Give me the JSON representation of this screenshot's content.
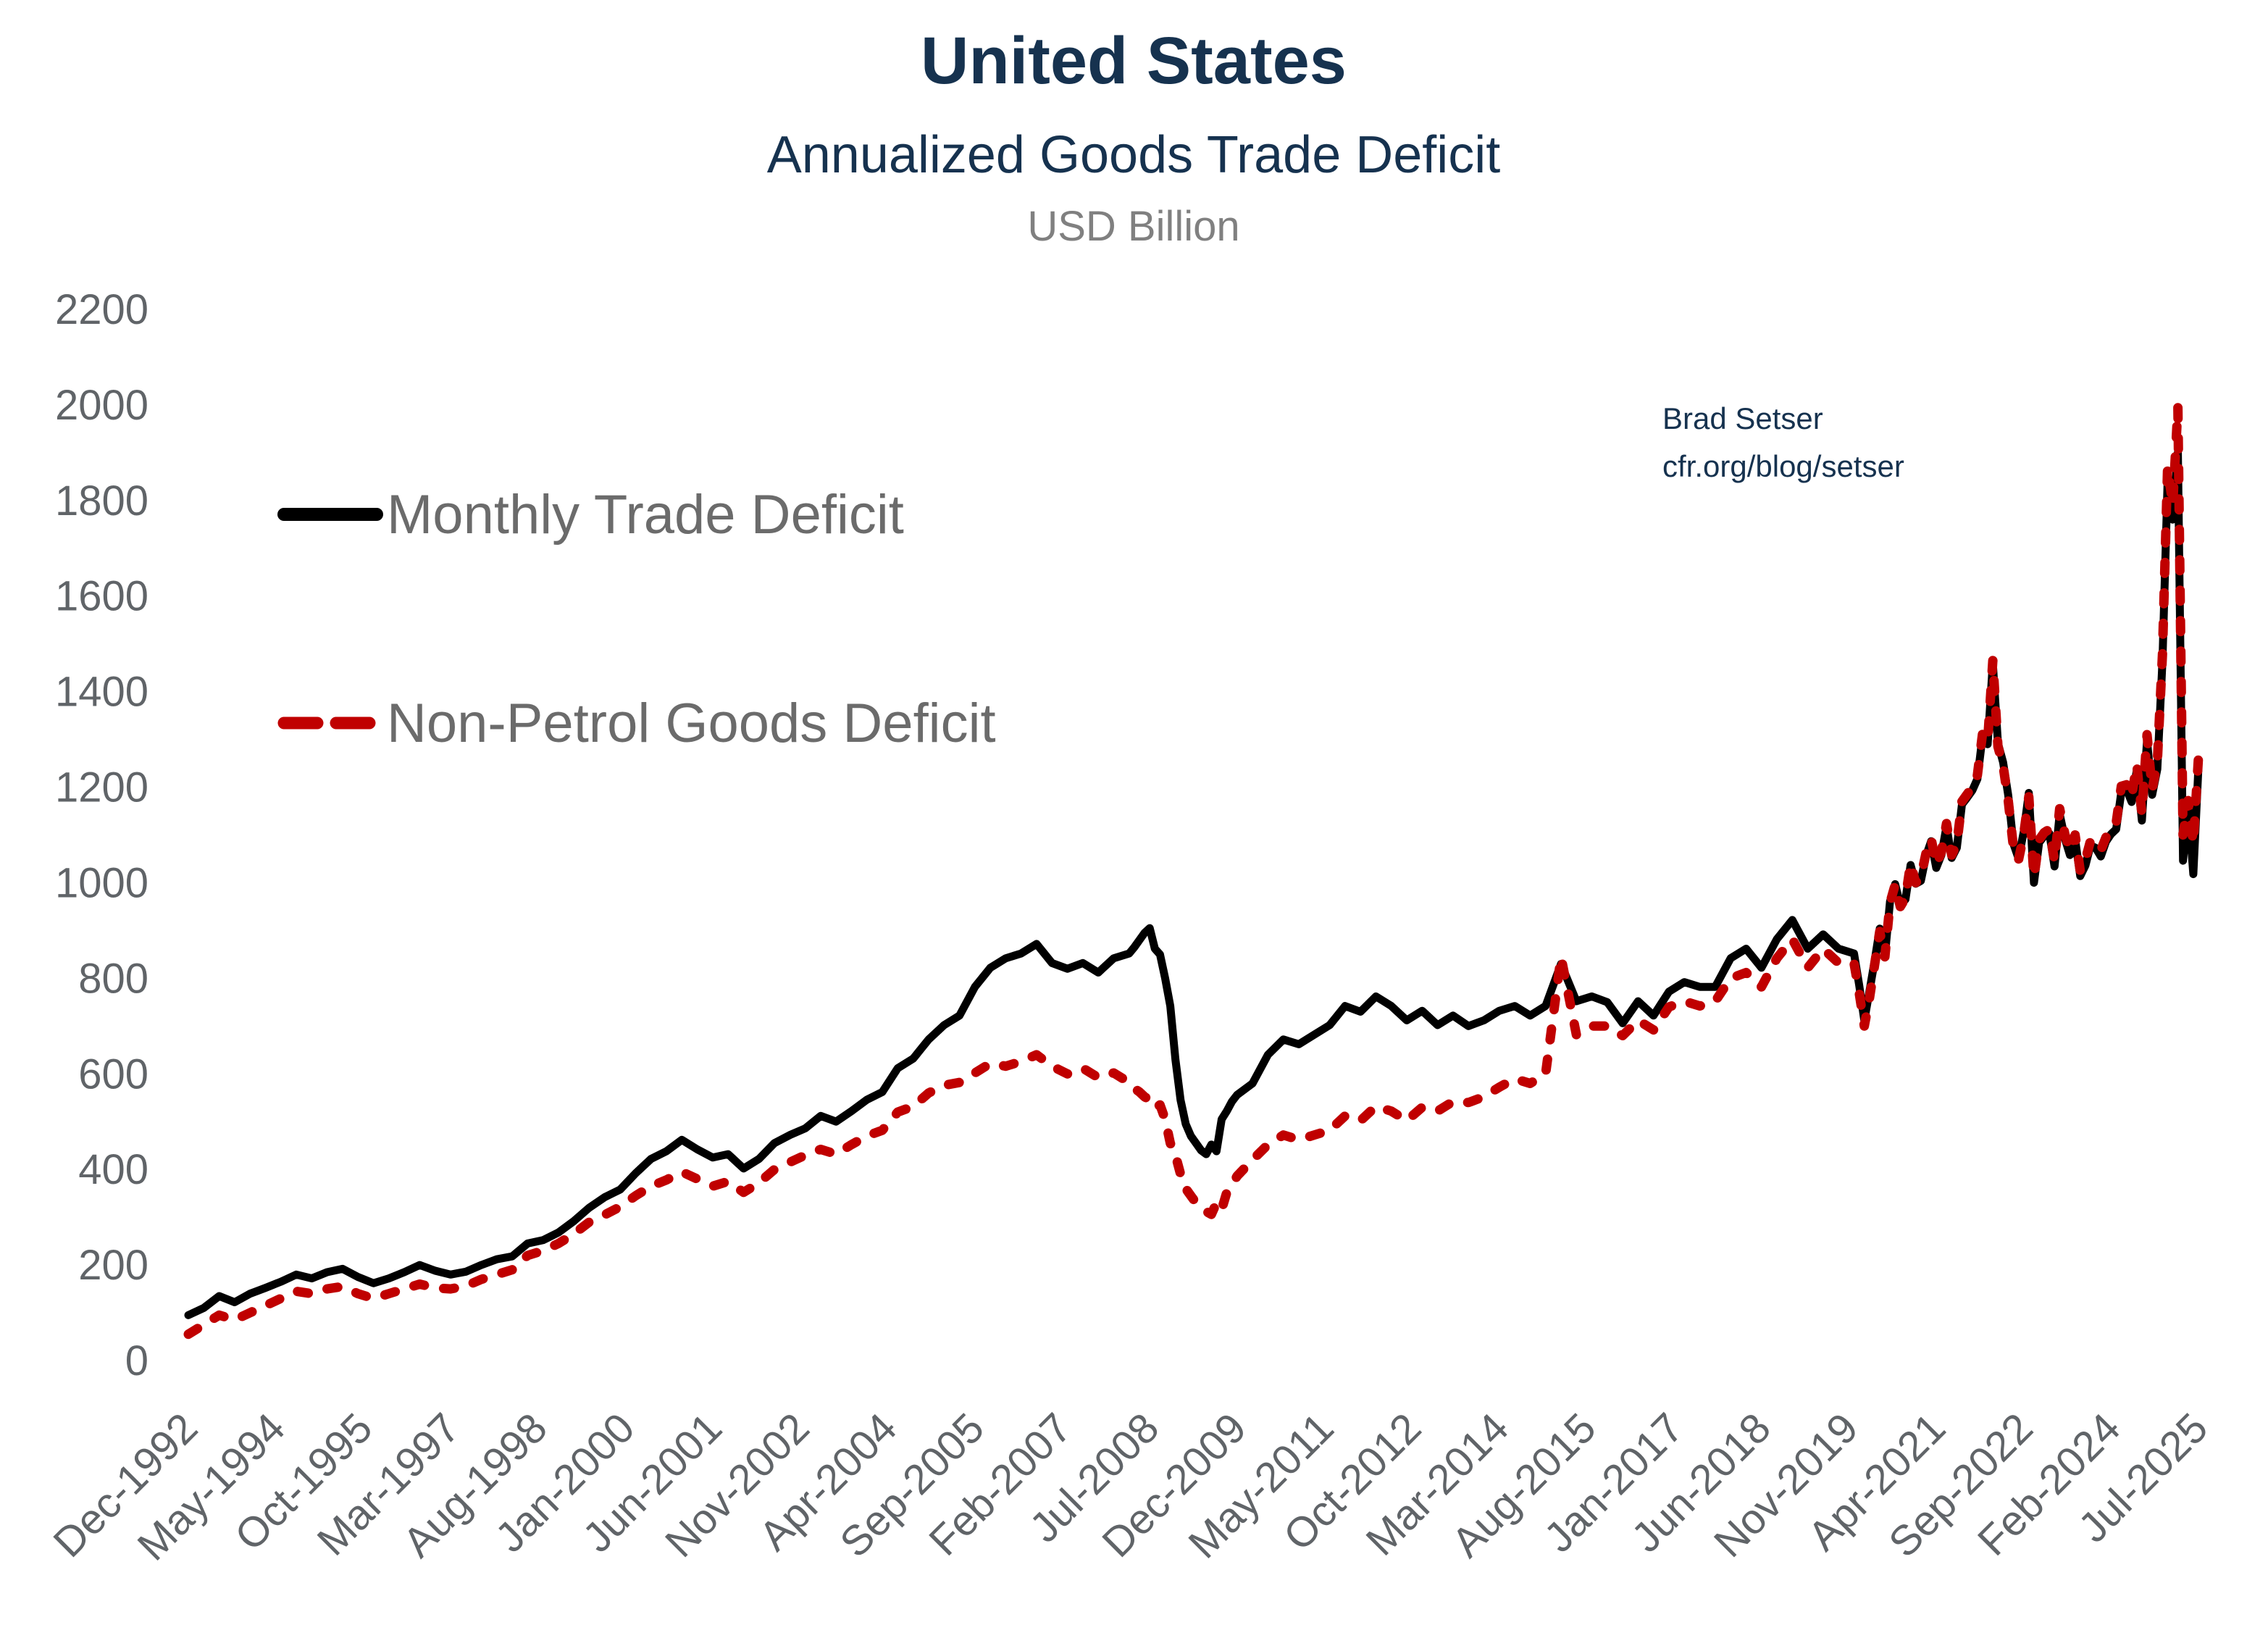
{
  "header": {
    "title": "United States",
    "subtitle": "Annualized Goods Trade Deficit",
    "unit_label": "USD Billion"
  },
  "credit": {
    "line1": "Brad Setser",
    "line2": "cfr.org/blog/setser"
  },
  "legend": {
    "series1_label": "Monthly Trade Deficit",
    "series2_label": "Non-Petrol Goods Deficit"
  },
  "colors": {
    "navy": "#16324F",
    "black_line": "#000000",
    "red_line": "#C00000",
    "tick_gray": "#606468",
    "legend_gray": "#6b6b6b",
    "unit_gray": "#808080",
    "background": "#FFFFFF"
  },
  "chart_data": {
    "type": "line",
    "title": "United States — Annualized Goods Trade Deficit",
    "xlabel": "",
    "ylabel": "USD Billion",
    "ylim": [
      0,
      2200
    ],
    "grid": false,
    "legend_position": "upper-left-inside",
    "x_unit": "months since Dec-1992",
    "y_ticks": [
      0,
      200,
      400,
      600,
      800,
      1000,
      1200,
      1400,
      1600,
      1800,
      2000,
      2200
    ],
    "x_ticks": [
      {
        "m": 0,
        "label": "Dec-1992"
      },
      {
        "m": 17,
        "label": "May-1994"
      },
      {
        "m": 34,
        "label": "Oct-1995"
      },
      {
        "m": 51,
        "label": "Mar-1997"
      },
      {
        "m": 68,
        "label": "Aug-1998"
      },
      {
        "m": 85,
        "label": "Jan-2000"
      },
      {
        "m": 102,
        "label": "Jun-2001"
      },
      {
        "m": 119,
        "label": "Nov-2002"
      },
      {
        "m": 136,
        "label": "Apr-2004"
      },
      {
        "m": 153,
        "label": "Sep-2005"
      },
      {
        "m": 170,
        "label": "Feb-2007"
      },
      {
        "m": 187,
        "label": "Jul-2008"
      },
      {
        "m": 204,
        "label": "Dec-2009"
      },
      {
        "m": 221,
        "label": "May-2011"
      },
      {
        "m": 238,
        "label": "Oct-2012"
      },
      {
        "m": 255,
        "label": "Mar-2014"
      },
      {
        "m": 272,
        "label": "Aug-2015"
      },
      {
        "m": 289,
        "label": "Jan-2017"
      },
      {
        "m": 306,
        "label": "Jun-2018"
      },
      {
        "m": 323,
        "label": "Nov-2019"
      },
      {
        "m": 340,
        "label": "Apr-2021"
      },
      {
        "m": 357,
        "label": "Sep-2022"
      },
      {
        "m": 374,
        "label": "Feb-2024"
      },
      {
        "m": 391,
        "label": "Jul-2025"
      }
    ],
    "months": [
      0,
      3,
      6,
      9,
      12,
      15,
      18,
      21,
      24,
      27,
      30,
      33,
      36,
      39,
      42,
      45,
      48,
      51,
      54,
      57,
      60,
      63,
      66,
      69,
      72,
      75,
      78,
      81,
      84,
      87,
      90,
      93,
      96,
      99,
      102,
      105,
      108,
      111,
      114,
      117,
      120,
      123,
      126,
      129,
      132,
      135,
      138,
      141,
      144,
      147,
      150,
      153,
      156,
      159,
      162,
      165,
      168,
      171,
      174,
      177,
      180,
      183,
      184,
      185,
      186,
      187,
      188,
      189,
      190,
      191,
      192,
      193,
      194,
      195,
      196,
      197,
      198,
      199,
      200,
      201,
      202,
      203,
      204,
      207,
      210,
      213,
      216,
      219,
      222,
      225,
      228,
      231,
      234,
      237,
      240,
      243,
      246,
      249,
      252,
      255,
      258,
      261,
      264,
      267,
      270,
      273,
      276,
      279,
      282,
      285,
      288,
      291,
      294,
      297,
      300,
      303,
      306,
      309,
      312,
      315,
      318,
      321,
      324,
      325,
      326,
      327,
      328,
      329,
      330,
      331,
      332,
      333,
      334,
      335,
      336,
      337,
      338,
      339,
      340,
      341,
      342,
      343,
      344,
      345,
      346,
      347,
      348,
      349,
      350,
      351,
      352,
      353,
      354,
      355,
      356,
      357,
      358,
      359,
      360,
      361,
      362,
      363,
      364,
      365,
      366,
      367,
      368,
      369,
      370,
      371,
      372,
      373,
      374,
      375,
      376,
      377,
      378,
      379,
      380,
      381,
      382,
      383,
      384,
      385,
      386,
      387,
      388,
      389,
      390,
      391
    ],
    "series": [
      {
        "name": "Monthly Trade Deficit",
        "color": "#000000",
        "style": "solid",
        "values": [
          95,
          110,
          135,
          122,
          140,
          152,
          165,
          180,
          172,
          185,
          192,
          175,
          162,
          172,
          185,
          200,
          188,
          180,
          186,
          200,
          212,
          218,
          245,
          252,
          268,
          292,
          320,
          342,
          358,
          392,
          422,
          438,
          462,
          442,
          425,
          432,
          402,
          422,
          455,
          472,
          486,
          512,
          500,
          522,
          546,
          562,
          612,
          632,
          672,
          702,
          722,
          782,
          822,
          842,
          852,
          872,
          832,
          820,
          832,
          812,
          842,
          852,
          865,
          880,
          895,
          905,
          862,
          850,
          800,
          742,
          630,
          545,
          495,
          470,
          455,
          440,
          432,
          452,
          438,
          505,
          522,
          542,
          556,
          580,
          640,
          672,
          662,
          682,
          702,
          742,
          730,
          762,
          742,
          712,
          732,
          702,
          722,
          700,
          712,
          732,
          742,
          722,
          742,
          830,
          752,
          762,
          750,
          706,
          752,
          722,
          772,
          792,
          782,
          782,
          842,
          862,
          822,
          882,
          922,
          862,
          892,
          862,
          852,
          786,
          712,
          773,
          836,
          904,
          847,
          961,
          997,
          953,
          965,
          1037,
          998,
          1004,
          1056,
          1087,
          1031,
          1058,
          1118,
          1052,
          1073,
          1164,
          1178,
          1193,
          1217,
          1307,
          1290,
          1460,
          1292,
          1252,
          1183,
          1082,
          1051,
          1106,
          1188,
          1000,
          1084,
          1098,
          1103,
          1034,
          1144,
          1093,
          1058,
          1091,
          1014,
          1036,
          1078,
          1073,
          1055,
          1086,
          1102,
          1112,
          1190,
          1196,
          1169,
          1235,
          1130,
          1298,
          1184,
          1238,
          1464,
          1840,
          1760,
          1900,
          1046,
          1159,
          1018,
          1243
        ]
      },
      {
        "name": "Non-Petrol Goods Deficit",
        "color": "#C00000",
        "style": "dashed",
        "values": [
          55,
          75,
          95,
          85,
          100,
          115,
          130,
          145,
          140,
          150,
          155,
          140,
          130,
          140,
          150,
          160,
          152,
          150,
          156,
          170,
          180,
          190,
          220,
          230,
          245,
          265,
          290,
          305,
          322,
          345,
          365,
          378,
          395,
          380,
          365,
          375,
          352,
          372,
          400,
          415,
          430,
          442,
          432,
          452,
          470,
          482,
          520,
          532,
          560,
          576,
          582,
          602,
          622,
          616,
          626,
          640,
          616,
          600,
          612,
          592,
          602,
          582,
          570,
          562,
          552,
          545,
          528,
          535,
          505,
          455,
          430,
          390,
          360,
          345,
          330,
          320,
          312,
          306,
          330,
          316,
          352,
          368,
          386,
          420,
          452,
          472,
          462,
          472,
          482,
          512,
          502,
          532,
          522,
          502,
          530,
          522,
          542,
          540,
          552,
          572,
          590,
          580,
          600,
          845,
          682,
          700,
          700,
          680,
          712,
          692,
          740,
          752,
          742,
          752,
          800,
          812,
          782,
          842,
          882,
          822,
          862,
          832,
          832,
          770,
          700,
          758,
          828,
          898,
          845,
          958,
          996,
          950,
          968,
          1040,
          1000,
          1012,
          1062,
          1092,
          1038,
          1064,
          1124,
          1058,
          1080,
          1170,
          1185,
          1200,
          1225,
          1312,
          1296,
          1465,
          1285,
          1245,
          1172,
          1075,
          1048,
          1100,
          1180,
          1012,
          1090,
          1105,
          1112,
          1045,
          1155,
          1102,
          1068,
          1100,
          1025,
          1048,
          1088,
          1082,
          1068,
          1095,
          1112,
          1125,
          1202,
          1205,
          1180,
          1248,
          1145,
          1310,
          1195,
          1252,
          1478,
          1870,
          1790,
          1995,
          1100,
          1172,
          1082,
          1262
        ]
      }
    ]
  }
}
